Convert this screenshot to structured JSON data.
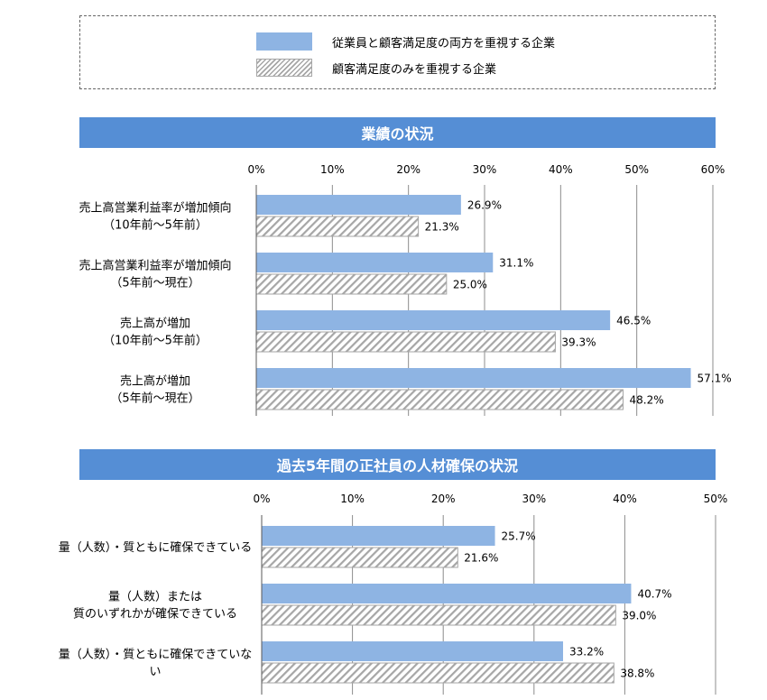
{
  "legend": {
    "items": [
      {
        "label": "従業員と顧客満足度の両方を重視する企業",
        "style": "solid",
        "color": "#8eb4e3"
      },
      {
        "label": "顧客満足度のみを重視する企業",
        "style": "hatched",
        "color": "#a6a6a6"
      }
    ]
  },
  "colors": {
    "banner": "#558ed5",
    "series_a": "#8eb4e3",
    "series_b_hatch": "#a6a6a6"
  },
  "chart_data": [
    {
      "type": "bar",
      "orientation": "horizontal",
      "title": "業績の状況",
      "xlim": [
        0,
        60
      ],
      "ticks": [
        "0%",
        "10%",
        "20%",
        "30%",
        "40%",
        "50%",
        "60%"
      ],
      "grid": true,
      "categories": [
        [
          "売上高営業利益率が増加傾向",
          "（10年前～5年前）"
        ],
        [
          "売上高営業利益率が増加傾向",
          "（5年前～現在）"
        ],
        [
          "売上高が増加",
          "（10年前～5年前）"
        ],
        [
          "売上高が増加",
          "（5年前～現在）"
        ]
      ],
      "series": [
        {
          "name": "従業員と顧客満足度の両方を重視する企業",
          "values": [
            26.9,
            31.1,
            46.5,
            57.1
          ],
          "labels": [
            "26.9%",
            "31.1%",
            "46.5%",
            "57.1%"
          ]
        },
        {
          "name": "顧客満足度のみを重視する企業",
          "values": [
            21.3,
            25.0,
            39.3,
            48.2
          ],
          "labels": [
            "21.3%",
            "25.0%",
            "39.3%",
            "48.2%"
          ]
        }
      ]
    },
    {
      "type": "bar",
      "orientation": "horizontal",
      "title": "過去5年間の正社員の人材確保の状況",
      "xlim": [
        0,
        50
      ],
      "ticks": [
        "0%",
        "10%",
        "20%",
        "30%",
        "40%",
        "50%"
      ],
      "grid": true,
      "categories": [
        [
          "量（人数）・質ともに確保できている"
        ],
        [
          "量（人数）または",
          "質のいずれかが確保できている"
        ],
        [
          "量（人数）・質ともに確保できていな",
          "い"
        ]
      ],
      "series": [
        {
          "name": "従業員と顧客満足度の両方を重視する企業",
          "values": [
            25.7,
            40.7,
            33.2
          ],
          "labels": [
            "25.7%",
            "40.7%",
            "33.2%"
          ]
        },
        {
          "name": "顧客満足度のみを重視する企業",
          "values": [
            21.6,
            39.0,
            38.8
          ],
          "labels": [
            "21.6%",
            "39.0%",
            "38.8%"
          ]
        }
      ]
    }
  ]
}
